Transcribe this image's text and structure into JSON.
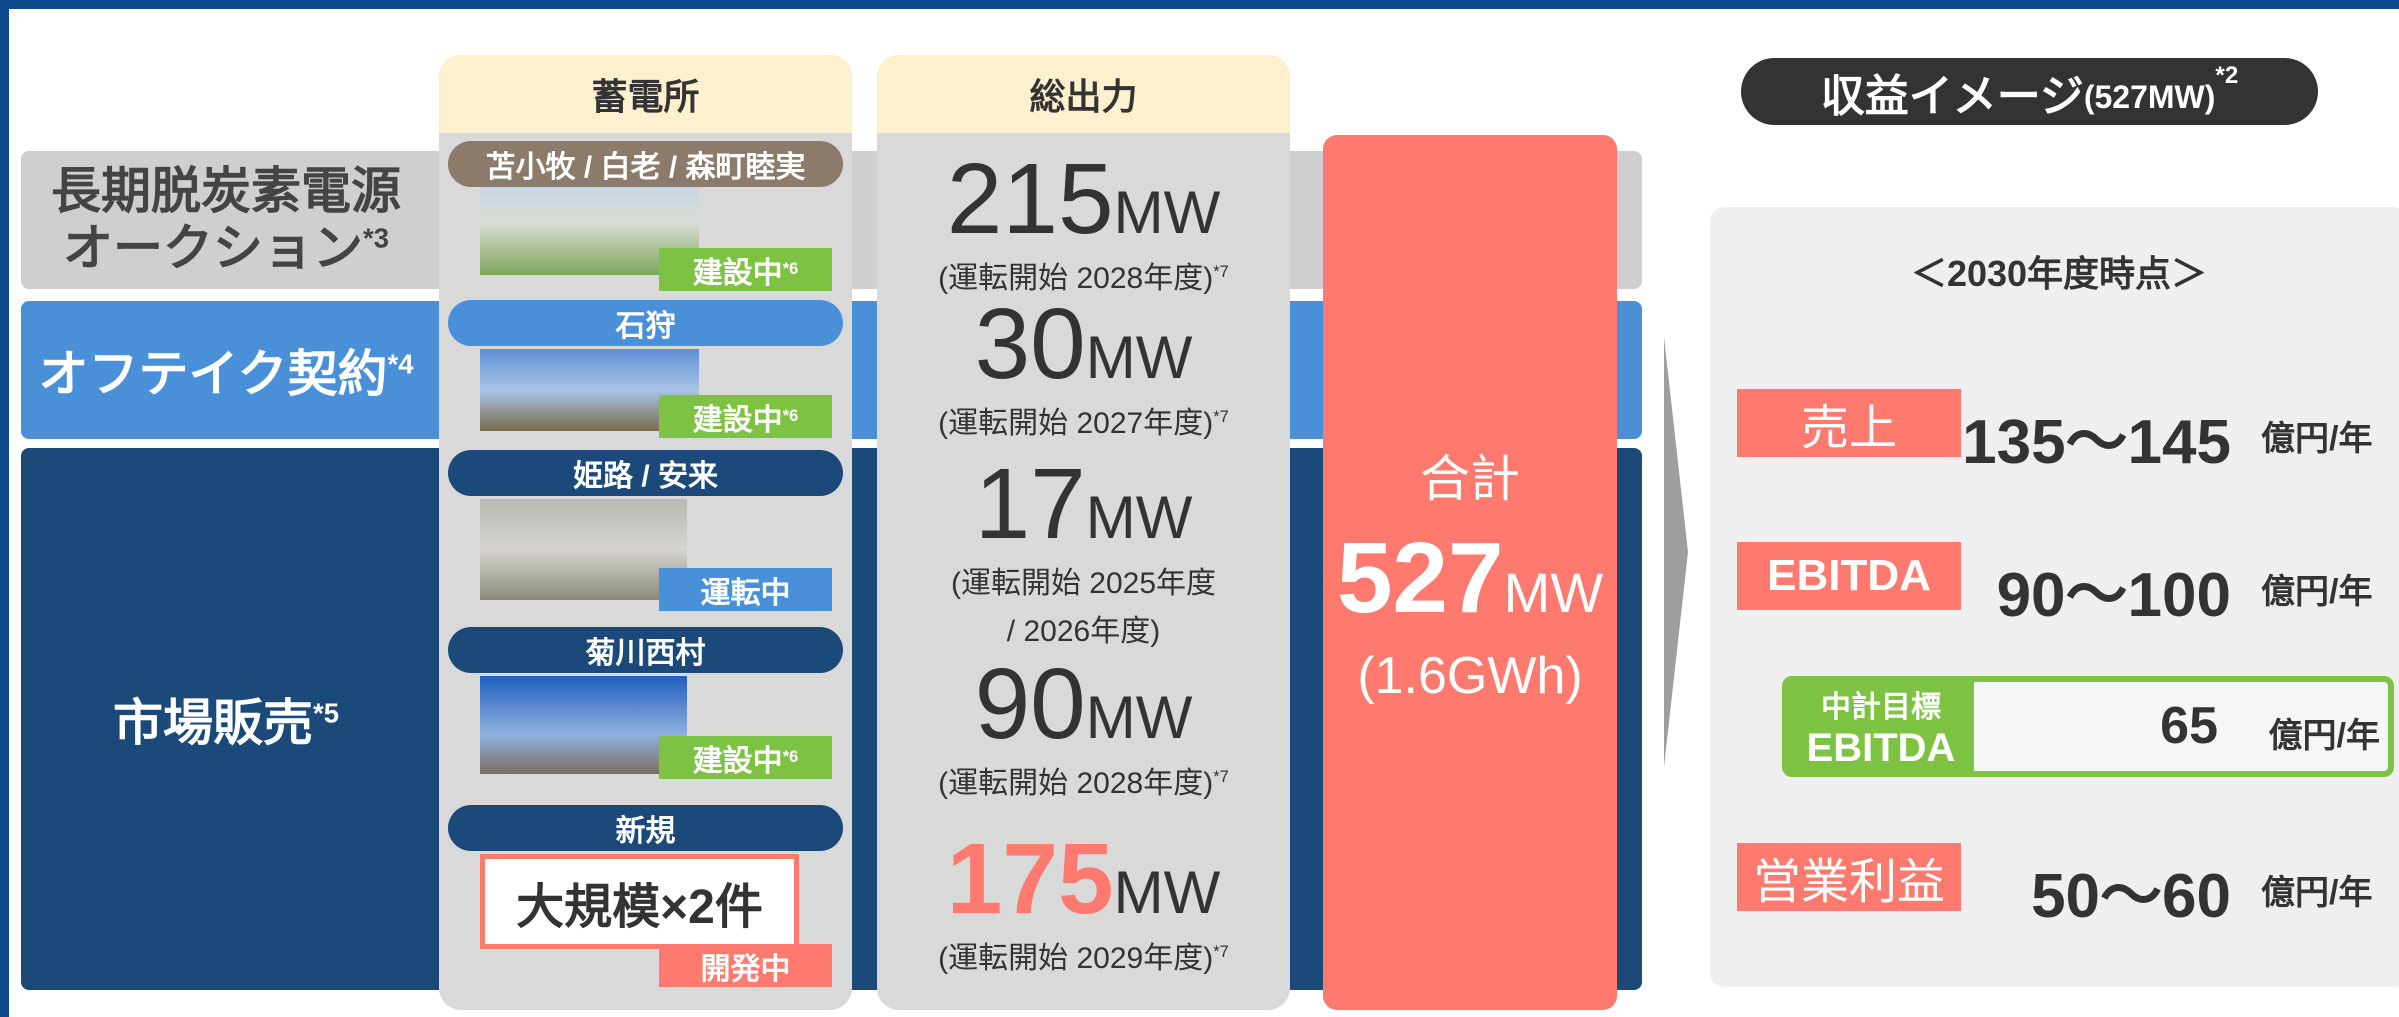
{
  "headers": {
    "sites": "蓄電所",
    "output": "総出力"
  },
  "bands": [
    {
      "lines": [
        "長期脱炭素電源",
        "オークション"
      ],
      "note": "*3"
    },
    {
      "lines": [
        "オフテイク契約"
      ],
      "note": "*4"
    },
    {
      "lines": [
        "市場販売"
      ],
      "note": "*5"
    }
  ],
  "sites": [
    {
      "name": "苫小牧 / 白老 / 森町睦実",
      "status": "建設中",
      "note": "*6"
    },
    {
      "name": "石狩",
      "status": "建設中",
      "note": "*6"
    },
    {
      "name": "姫路 / 安来",
      "status": "運転中"
    },
    {
      "name": "菊川西村",
      "status": "建設中",
      "note": "*6"
    },
    {
      "name": "新規",
      "box": "大規模×2件",
      "status": "開発中"
    }
  ],
  "outputs": [
    {
      "value": 215,
      "unit": "MW",
      "lines": [
        "(運転開始 2028年度)"
      ],
      "note": "*7"
    },
    {
      "value": 30,
      "unit": "MW",
      "lines": [
        "(運転開始 2027年度)"
      ],
      "note": "*7"
    },
    {
      "value": 17,
      "unit": "MW",
      "lines": [
        "(運転開始 2025年度",
        "/ 2026年度)"
      ]
    },
    {
      "value": 90,
      "unit": "MW",
      "lines": [
        "(運転開始 2028年度)"
      ],
      "note": "*7"
    },
    {
      "value": 175,
      "unit": "MW",
      "lines": [
        "(運転開始 2029年度)"
      ],
      "note": "*7"
    }
  ],
  "total": {
    "label": "合計",
    "value": 527,
    "unit": "MW",
    "sub": "(1.6GWh)"
  },
  "revenue": {
    "title": "収益イメージ",
    "title_sub": "(527MW)",
    "note": "*2",
    "period": "＜2030年度時点＞",
    "rows": [
      {
        "label": "売上",
        "value": "135～145",
        "unit": "億円/年"
      },
      {
        "label": "EBITDA",
        "value": "90～100",
        "unit": "億円/年"
      },
      {
        "label": "営業利益",
        "value": "50～60",
        "unit": "億円/年"
      }
    ],
    "target": {
      "label1": "中計目標",
      "label2": "EBITDA",
      "value": 65,
      "unit": "億円/年"
    }
  }
}
